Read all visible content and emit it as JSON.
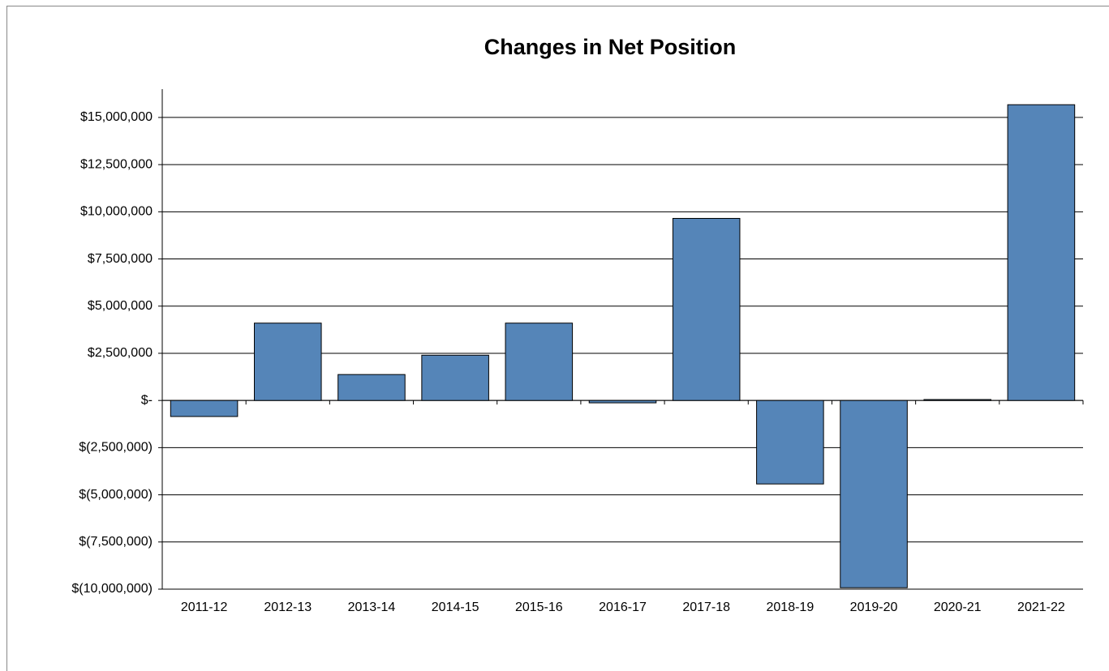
{
  "chart_data": {
    "type": "bar",
    "title": "Changes in Net Position",
    "categories": [
      "2011-12",
      "2012-13",
      "2013-14",
      "2014-15",
      "2015-16",
      "2016-17",
      "2017-18",
      "2018-19",
      "2019-20",
      "2020-21",
      "2021-22"
    ],
    "values": [
      -850000,
      4100000,
      1375000,
      2400000,
      4100000,
      -125000,
      9650000,
      -4425000,
      -9925000,
      50000,
      15675000
    ],
    "color": "#5585b8",
    "ylim": [
      -10000000,
      16500000
    ],
    "yticks": [
      {
        "value": -10000000,
        "label": "$(10,000,000)"
      },
      {
        "value": -7500000,
        "label": "$(7,500,000)"
      },
      {
        "value": -5000000,
        "label": "$(5,000,000)"
      },
      {
        "value": -2500000,
        "label": "$(2,500,000)"
      },
      {
        "value": 0,
        "label": "$-"
      },
      {
        "value": 2500000,
        "label": "$2,500,000"
      },
      {
        "value": 5000000,
        "label": "$5,000,000"
      },
      {
        "value": 7500000,
        "label": "$7,500,000"
      },
      {
        "value": 10000000,
        "label": "$10,000,000"
      },
      {
        "value": 12500000,
        "label": "$12,500,000"
      },
      {
        "value": 15000000,
        "label": "$15,000,000"
      }
    ],
    "grid": true
  }
}
